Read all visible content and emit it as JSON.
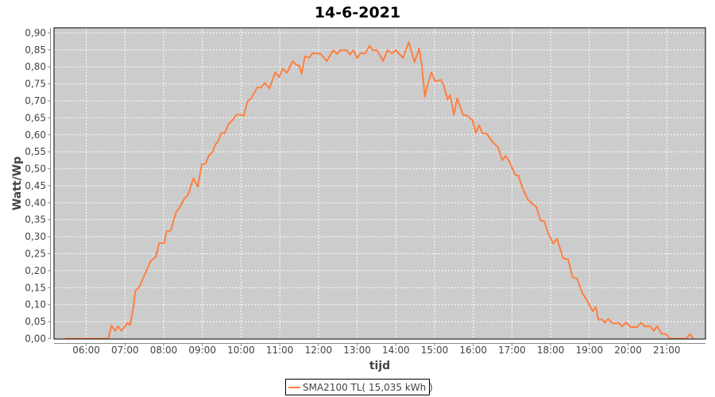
{
  "chart_data": {
    "type": "line",
    "title": "14-6-2021",
    "xlabel": "tijd",
    "ylabel": "Watt/Wp",
    "xlim": [
      "05:10",
      "22:00"
    ],
    "ylim": [
      0,
      0.915
    ],
    "x_ticks": [
      "06:00",
      "07:00",
      "08:00",
      "09:00",
      "10:00",
      "11:00",
      "12:00",
      "13:00",
      "14:00",
      "15:00",
      "16:00",
      "17:00",
      "18:00",
      "19:00",
      "20:00",
      "21:00"
    ],
    "y_ticks": [
      "0,00",
      "0,05",
      "0,10",
      "0,15",
      "0,20",
      "0,25",
      "0,30",
      "0,35",
      "0,40",
      "0,45",
      "0,50",
      "0,55",
      "0,60",
      "0,65",
      "0,70",
      "0,75",
      "0,80",
      "0,85",
      "0,90"
    ],
    "grid": true,
    "plot_background": "#cccccc",
    "legend_position": "bottom",
    "series": [
      {
        "name": "SMA2100 TL( 15,035 kWh )",
        "color": "#ff7f3f",
        "x": [
          "05:27",
          "06:34",
          "06:39",
          "06:45",
          "06:49",
          "06:55",
          "07:04",
          "07:08",
          "07:13",
          "07:16",
          "07:22",
          "07:30",
          "07:40",
          "07:48",
          "07:53",
          "08:01",
          "08:04",
          "08:11",
          "08:19",
          "08:23",
          "08:32",
          "08:38",
          "08:46",
          "08:53",
          "08:59",
          "09:05",
          "09:10",
          "09:16",
          "09:20",
          "09:25",
          "09:29",
          "09:35",
          "09:40",
          "09:47",
          "09:53",
          "10:00",
          "10:04",
          "10:10",
          "10:16",
          "10:25",
          "10:31",
          "10:37",
          "10:44",
          "10:53",
          "10:59",
          "11:05",
          "11:11",
          "11:20",
          "11:26",
          "11:30",
          "11:34",
          "11:39",
          "11:46",
          "11:50",
          "12:03",
          "12:13",
          "12:23",
          "12:29",
          "12:34",
          "12:44",
          "12:49",
          "12:54",
          "13:00",
          "13:05",
          "13:13",
          "13:19",
          "13:24",
          "13:31",
          "13:40",
          "13:47",
          "13:54",
          "14:00",
          "14:11",
          "14:20",
          "14:29",
          "14:36",
          "14:40",
          "14:45",
          "14:49",
          "14:55",
          "15:01",
          "15:10",
          "15:14",
          "15:20",
          "15:24",
          "15:30",
          "15:35",
          "15:44",
          "15:50",
          "15:59",
          "16:04",
          "16:09",
          "16:14",
          "16:21",
          "16:30",
          "16:38",
          "16:45",
          "16:50",
          "16:56",
          "17:05",
          "17:10",
          "17:17",
          "17:25",
          "17:38",
          "17:44",
          "17:50",
          "17:56",
          "18:04",
          "18:10",
          "18:19",
          "18:27",
          "18:34",
          "18:41",
          "18:49",
          "18:59",
          "19:05",
          "19:10",
          "19:14",
          "19:20",
          "19:24",
          "19:29",
          "19:37",
          "19:45",
          "19:51",
          "19:57",
          "20:04",
          "20:14",
          "20:20",
          "20:26",
          "20:34",
          "20:40",
          "20:45",
          "20:52",
          "20:59",
          "21:05",
          "21:30",
          "21:36",
          "21:41"
        ],
        "y": [
          0,
          0,
          0.038,
          0.023,
          0.036,
          0.023,
          0.047,
          0.04,
          0.093,
          0.141,
          0.151,
          0.186,
          0.229,
          0.241,
          0.281,
          0.281,
          0.315,
          0.318,
          0.371,
          0.381,
          0.412,
          0.424,
          0.472,
          0.447,
          0.513,
          0.515,
          0.539,
          0.55,
          0.571,
          0.583,
          0.605,
          0.605,
          0.63,
          0.644,
          0.659,
          0.659,
          0.655,
          0.698,
          0.708,
          0.739,
          0.739,
          0.753,
          0.737,
          0.784,
          0.77,
          0.795,
          0.782,
          0.817,
          0.805,
          0.805,
          0.78,
          0.831,
          0.827,
          0.84,
          0.839,
          0.817,
          0.849,
          0.838,
          0.849,
          0.849,
          0.836,
          0.849,
          0.826,
          0.84,
          0.84,
          0.862,
          0.849,
          0.849,
          0.817,
          0.849,
          0.839,
          0.849,
          0.826,
          0.873,
          0.814,
          0.854,
          0.809,
          0.712,
          0.747,
          0.784,
          0.758,
          0.761,
          0.747,
          0.704,
          0.717,
          0.659,
          0.708,
          0.659,
          0.657,
          0.642,
          0.605,
          0.628,
          0.605,
          0.603,
          0.579,
          0.564,
          0.525,
          0.538,
          0.521,
          0.482,
          0.48,
          0.441,
          0.408,
          0.387,
          0.348,
          0.346,
          0.311,
          0.28,
          0.294,
          0.237,
          0.233,
          0.18,
          0.177,
          0.135,
          0.104,
          0.081,
          0.093,
          0.056,
          0.056,
          0.047,
          0.058,
          0.044,
          0.047,
          0.036,
          0.048,
          0.034,
          0.034,
          0.047,
          0.036,
          0.037,
          0.023,
          0.037,
          0.015,
          0.013,
          0,
          0,
          0.013,
          0
        ]
      }
    ]
  }
}
